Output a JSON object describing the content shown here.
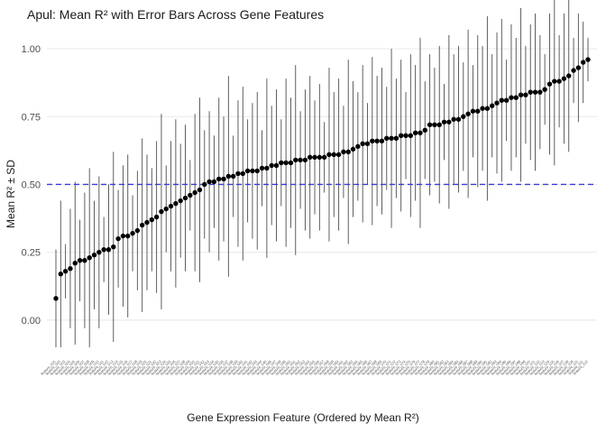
{
  "title": "Apul: Mean R² with Error Bars Across Gene Features",
  "chart_data": {
    "type": "scatter",
    "title": "Apul: Mean R² with Error Bars Across Gene Features",
    "xlabel": "Gene Expression Feature (Ordered by Mean R²)",
    "ylabel": "Mean R² ± SD",
    "ylim": [
      -0.13,
      1.06
    ],
    "y_ticks": [
      0,
      0.25,
      0.5,
      0.75,
      1.0
    ],
    "y_tick_labels": [
      "0.00",
      "0.25",
      "0.50",
      "0.75",
      "1.00"
    ],
    "grid": true,
    "legend": "none",
    "reference_line": {
      "y": 0.5,
      "color": "#3a3ad6",
      "style": "dashed"
    },
    "point_color": "#000000",
    "errorbar_color": "#4d4d4d",
    "x_tick_labels_note": "dense rotated feature names, illegible at this scale",
    "x": [
      "feature_001",
      "feature_002",
      "feature_003",
      "feature_004",
      "feature_005",
      "feature_006",
      "feature_007",
      "feature_008",
      "feature_009",
      "feature_010",
      "feature_011",
      "feature_012",
      "feature_013",
      "feature_014",
      "feature_015",
      "feature_016",
      "feature_017",
      "feature_018",
      "feature_019",
      "feature_020",
      "feature_021",
      "feature_022",
      "feature_023",
      "feature_024",
      "feature_025",
      "feature_026",
      "feature_027",
      "feature_028",
      "feature_029",
      "feature_030",
      "feature_031",
      "feature_032",
      "feature_033",
      "feature_034",
      "feature_035",
      "feature_036",
      "feature_037",
      "feature_038",
      "feature_039",
      "feature_040",
      "feature_041",
      "feature_042",
      "feature_043",
      "feature_044",
      "feature_045",
      "feature_046",
      "feature_047",
      "feature_048",
      "feature_049",
      "feature_050",
      "feature_051",
      "feature_052",
      "feature_053",
      "feature_054",
      "feature_055",
      "feature_056",
      "feature_057",
      "feature_058",
      "feature_059",
      "feature_060",
      "feature_061",
      "feature_062",
      "feature_063",
      "feature_064",
      "feature_065",
      "feature_066",
      "feature_067",
      "feature_068",
      "feature_069",
      "feature_070",
      "feature_071",
      "feature_072",
      "feature_073",
      "feature_074",
      "feature_075",
      "feature_076",
      "feature_077",
      "feature_078",
      "feature_079",
      "feature_080",
      "feature_081",
      "feature_082",
      "feature_083",
      "feature_084",
      "feature_085",
      "feature_086",
      "feature_087",
      "feature_088",
      "feature_089",
      "feature_090",
      "feature_091",
      "feature_092",
      "feature_093",
      "feature_094",
      "feature_095",
      "feature_096",
      "feature_097",
      "feature_098",
      "feature_099",
      "feature_100",
      "feature_101",
      "feature_102",
      "feature_103",
      "feature_104",
      "feature_105",
      "feature_106",
      "feature_107",
      "feature_108",
      "feature_109",
      "feature_110",
      "feature_111",
      "feature_112"
    ],
    "means": [
      0.08,
      0.17,
      0.18,
      0.19,
      0.21,
      0.22,
      0.22,
      0.23,
      0.24,
      0.25,
      0.26,
      0.26,
      0.27,
      0.3,
      0.31,
      0.31,
      0.32,
      0.33,
      0.35,
      0.36,
      0.37,
      0.38,
      0.4,
      0.41,
      0.42,
      0.43,
      0.44,
      0.45,
      0.46,
      0.47,
      0.48,
      0.5,
      0.51,
      0.51,
      0.52,
      0.52,
      0.53,
      0.53,
      0.54,
      0.54,
      0.55,
      0.55,
      0.55,
      0.56,
      0.56,
      0.57,
      0.57,
      0.58,
      0.58,
      0.58,
      0.59,
      0.59,
      0.59,
      0.6,
      0.6,
      0.6,
      0.6,
      0.61,
      0.61,
      0.61,
      0.62,
      0.62,
      0.63,
      0.64,
      0.65,
      0.65,
      0.66,
      0.66,
      0.66,
      0.67,
      0.67,
      0.67,
      0.68,
      0.68,
      0.68,
      0.69,
      0.69,
      0.7,
      0.72,
      0.72,
      0.72,
      0.73,
      0.73,
      0.74,
      0.74,
      0.75,
      0.76,
      0.77,
      0.77,
      0.78,
      0.78,
      0.79,
      0.8,
      0.81,
      0.81,
      0.82,
      0.82,
      0.83,
      0.83,
      0.84,
      0.84,
      0.84,
      0.85,
      0.87,
      0.88,
      0.88,
      0.89,
      0.9,
      0.92,
      0.93,
      0.95,
      0.96
    ],
    "sds": [
      0.18,
      0.27,
      0.1,
      0.22,
      0.3,
      0.15,
      0.25,
      0.33,
      0.2,
      0.28,
      0.12,
      0.24,
      0.35,
      0.18,
      0.26,
      0.3,
      0.14,
      0.22,
      0.32,
      0.25,
      0.19,
      0.28,
      0.36,
      0.16,
      0.24,
      0.31,
      0.21,
      0.27,
      0.13,
      0.29,
      0.34,
      0.2,
      0.26,
      0.17,
      0.3,
      0.23,
      0.37,
      0.15,
      0.27,
      0.32,
      0.19,
      0.25,
      0.29,
      0.14,
      0.33,
      0.22,
      0.28,
      0.16,
      0.31,
      0.24,
      0.35,
      0.18,
      0.26,
      0.3,
      0.21,
      0.27,
      0.13,
      0.32,
      0.23,
      0.28,
      0.17,
      0.34,
      0.25,
      0.2,
      0.29,
      0.15,
      0.31,
      0.24,
      0.27,
      0.19,
      0.33,
      0.22,
      0.28,
      0.16,
      0.3,
      0.25,
      0.35,
      0.18,
      0.26,
      0.21,
      0.29,
      0.14,
      0.32,
      0.24,
      0.27,
      0.2,
      0.31,
      0.17,
      0.28,
      0.23,
      0.34,
      0.19,
      0.26,
      0.3,
      0.15,
      0.27,
      0.22,
      0.32,
      0.18,
      0.25,
      0.29,
      0.21,
      0.13,
      0.26,
      0.31,
      0.17,
      0.24,
      0.28,
      0.12,
      0.2,
      0.15,
      0.08
    ]
  }
}
